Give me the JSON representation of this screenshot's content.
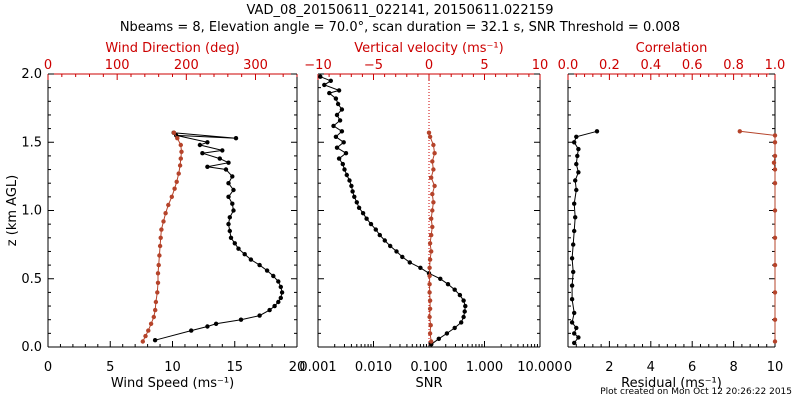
{
  "title_line1": "VAD_08_20150611_022141, 20150611.022159",
  "title_line2": "Nbeams = 8, Elevation angle = 70.0°, scan duration = 32.1 s, SNR Threshold = 0.008",
  "footer": "Plot created on Mon Oct 12 20:26:22 2015",
  "colors": {
    "black": "#000000",
    "red": "#b5432a",
    "axis_red": "#cc0000"
  },
  "chart_data": [
    {
      "type": "line",
      "ylabel": "z (km AGL)",
      "ylim": [
        0,
        2
      ],
      "yticks": [
        "0.0",
        "0.5",
        "1.0",
        "1.5",
        "2.0"
      ],
      "xlabel": "Wind Speed (ms⁻¹)",
      "xlim": [
        0,
        20
      ],
      "xticks": [
        "0",
        "5",
        "10",
        "15",
        "20"
      ],
      "top_label": "Wind Direction (deg)",
      "top_xlim": [
        0,
        360
      ],
      "top_xticks": [
        "0",
        "100",
        "200",
        "300"
      ],
      "series": [
        {
          "axis": "bottom",
          "color": "#000000",
          "points": [
            [
              8.6,
              0.05
            ],
            [
              11.5,
              0.12
            ],
            [
              12.8,
              0.15
            ],
            [
              13.5,
              0.17
            ],
            [
              15.5,
              0.2
            ],
            [
              17.0,
              0.23
            ],
            [
              17.8,
              0.27
            ],
            [
              18.2,
              0.3
            ],
            [
              18.5,
              0.33
            ],
            [
              18.7,
              0.36
            ],
            [
              18.8,
              0.4
            ],
            [
              18.7,
              0.44
            ],
            [
              18.5,
              0.48
            ],
            [
              18.1,
              0.52
            ],
            [
              17.6,
              0.56
            ],
            [
              17.0,
              0.6
            ],
            [
              16.3,
              0.64
            ],
            [
              15.8,
              0.68
            ],
            [
              15.3,
              0.72
            ],
            [
              15.0,
              0.76
            ],
            [
              14.7,
              0.8
            ],
            [
              14.6,
              0.85
            ],
            [
              14.5,
              0.9
            ],
            [
              14.6,
              0.95
            ],
            [
              14.9,
              1.0
            ],
            [
              14.8,
              1.05
            ],
            [
              14.5,
              1.1
            ],
            [
              14.9,
              1.15
            ],
            [
              14.5,
              1.2
            ],
            [
              14.8,
              1.25
            ],
            [
              14.3,
              1.3
            ],
            [
              12.8,
              1.32
            ],
            [
              14.5,
              1.35
            ],
            [
              13.8,
              1.38
            ],
            [
              12.4,
              1.42
            ],
            [
              14.0,
              1.44
            ],
            [
              12.2,
              1.48
            ],
            [
              12.8,
              1.5
            ],
            [
              10.3,
              1.55
            ],
            [
              15.1,
              1.53
            ],
            [
              10.1,
              1.57
            ]
          ]
        },
        {
          "axis": "top",
          "color": "#b5432a",
          "points": [
            [
              137,
              0.04
            ],
            [
              141,
              0.08
            ],
            [
              145,
              0.12
            ],
            [
              149,
              0.17
            ],
            [
              153,
              0.22
            ],
            [
              155,
              0.27
            ],
            [
              156,
              0.33
            ],
            [
              158,
              0.4
            ],
            [
              159,
              0.47
            ],
            [
              159,
              0.54
            ],
            [
              160,
              0.6
            ],
            [
              161,
              0.67
            ],
            [
              162,
              0.74
            ],
            [
              163,
              0.8
            ],
            [
              164,
              0.86
            ],
            [
              167,
              0.92
            ],
            [
              170,
              0.98
            ],
            [
              174,
              1.04
            ],
            [
              179,
              1.1
            ],
            [
              183,
              1.16
            ],
            [
              186,
              1.21
            ],
            [
              189,
              1.27
            ],
            [
              191,
              1.33
            ],
            [
              192,
              1.38
            ],
            [
              193,
              1.43
            ],
            [
              192,
              1.48
            ],
            [
              187,
              1.53
            ],
            [
              182,
              1.57
            ]
          ]
        }
      ]
    },
    {
      "type": "line",
      "xlabel": "SNR",
      "xscale": "log",
      "xlim": [
        0.001,
        10
      ],
      "xticks": [
        "0.001",
        "0.010",
        "0.100",
        "1.000",
        "10.000"
      ],
      "top_label": "Vertical velocity (ms⁻¹)",
      "top_xlim": [
        -10,
        10
      ],
      "top_xticks": [
        "−10",
        "−5",
        "0",
        "5",
        "10"
      ],
      "reference_line": {
        "axis": "top",
        "value": 0,
        "style": "dotted"
      },
      "series": [
        {
          "axis": "bottom",
          "color": "#000000",
          "points": [
            [
              0.11,
              0.02
            ],
            [
              0.15,
              0.06
            ],
            [
              0.21,
              0.1
            ],
            [
              0.29,
              0.14
            ],
            [
              0.38,
              0.18
            ],
            [
              0.42,
              0.22
            ],
            [
              0.44,
              0.26
            ],
            [
              0.45,
              0.3
            ],
            [
              0.42,
              0.34
            ],
            [
              0.36,
              0.38
            ],
            [
              0.29,
              0.42
            ],
            [
              0.22,
              0.46
            ],
            [
              0.16,
              0.5
            ],
            [
              0.1,
              0.54
            ],
            [
              0.07,
              0.58
            ],
            [
              0.045,
              0.62
            ],
            [
              0.033,
              0.66
            ],
            [
              0.026,
              0.7
            ],
            [
              0.02,
              0.74
            ],
            [
              0.016,
              0.78
            ],
            [
              0.013,
              0.82
            ],
            [
              0.011,
              0.86
            ],
            [
              0.009,
              0.9
            ],
            [
              0.0075,
              0.94
            ],
            [
              0.0065,
              0.98
            ],
            [
              0.0055,
              1.02
            ],
            [
              0.005,
              1.06
            ],
            [
              0.0045,
              1.1
            ],
            [
              0.0042,
              1.14
            ],
            [
              0.004,
              1.18
            ],
            [
              0.0037,
              1.22
            ],
            [
              0.0033,
              1.26
            ],
            [
              0.003,
              1.3
            ],
            [
              0.0028,
              1.34
            ],
            [
              0.0024,
              1.38
            ],
            [
              0.0032,
              1.42
            ],
            [
              0.0022,
              1.46
            ],
            [
              0.0029,
              1.5
            ],
            [
              0.0021,
              1.54
            ],
            [
              0.0027,
              1.58
            ],
            [
              0.0019,
              1.62
            ],
            [
              0.0025,
              1.66
            ],
            [
              0.0022,
              1.7
            ],
            [
              0.0027,
              1.74
            ],
            [
              0.0023,
              1.78
            ],
            [
              0.0021,
              1.82
            ],
            [
              0.0016,
              1.86
            ],
            [
              0.0024,
              1.88
            ],
            [
              0.0013,
              1.92
            ],
            [
              0.0017,
              1.95
            ],
            [
              0.0011,
              1.98
            ]
          ]
        },
        {
          "axis": "top",
          "color": "#b5432a",
          "points": [
            [
              0.2,
              0.04
            ],
            [
              0.1,
              0.1
            ],
            [
              0.15,
              0.16
            ],
            [
              0.05,
              0.22
            ],
            [
              0.1,
              0.28
            ],
            [
              0.1,
              0.34
            ],
            [
              0.05,
              0.4
            ],
            [
              0.05,
              0.46
            ],
            [
              0.05,
              0.52
            ],
            [
              0.05,
              0.58
            ],
            [
              0.1,
              0.64
            ],
            [
              0.2,
              0.7
            ],
            [
              0.1,
              0.76
            ],
            [
              0.2,
              0.82
            ],
            [
              0.3,
              0.88
            ],
            [
              0.2,
              0.94
            ],
            [
              0.3,
              1.0
            ],
            [
              0.4,
              1.06
            ],
            [
              0.3,
              1.12
            ],
            [
              0.5,
              1.18
            ],
            [
              0.2,
              1.24
            ],
            [
              0.4,
              1.3
            ],
            [
              0.3,
              1.36
            ],
            [
              0.5,
              1.42
            ],
            [
              0.4,
              1.48
            ],
            [
              0.1,
              1.54
            ],
            [
              0.0,
              1.57
            ]
          ]
        }
      ]
    },
    {
      "type": "line",
      "xlabel": "Residual (ms⁻¹)",
      "xlim": [
        0,
        10
      ],
      "xticks": [
        "0",
        "2",
        "4",
        "6",
        "8",
        "10"
      ],
      "top_label": "Correlation",
      "top_xlim": [
        0,
        1
      ],
      "top_xticks": [
        "0.0",
        "0.2",
        "0.4",
        "0.6",
        "0.8",
        "1.0"
      ],
      "series": [
        {
          "axis": "bottom",
          "color": "#000000",
          "points": [
            [
              0.3,
              0.03
            ],
            [
              0.5,
              0.07
            ],
            [
              0.3,
              0.1
            ],
            [
              0.4,
              0.14
            ],
            [
              0.2,
              0.18
            ],
            [
              0.3,
              0.25
            ],
            [
              0.2,
              0.35
            ],
            [
              0.2,
              0.45
            ],
            [
              0.25,
              0.55
            ],
            [
              0.2,
              0.65
            ],
            [
              0.25,
              0.75
            ],
            [
              0.3,
              0.85
            ],
            [
              0.35,
              0.95
            ],
            [
              0.3,
              1.05
            ],
            [
              0.4,
              1.15
            ],
            [
              0.35,
              1.22
            ],
            [
              0.5,
              1.28
            ],
            [
              0.4,
              1.34
            ],
            [
              0.45,
              1.4
            ],
            [
              0.5,
              1.45
            ],
            [
              0.3,
              1.5
            ],
            [
              0.4,
              1.54
            ],
            [
              1.4,
              1.58
            ]
          ]
        },
        {
          "axis": "top",
          "color": "#b5432a",
          "points": [
            [
              1.0,
              0.04
            ],
            [
              1.0,
              0.2
            ],
            [
              1.0,
              0.4
            ],
            [
              1.0,
              0.6
            ],
            [
              1.0,
              0.8
            ],
            [
              1.0,
              1.0
            ],
            [
              1.0,
              1.2
            ],
            [
              1.0,
              1.3
            ],
            [
              0.995,
              1.35
            ],
            [
              1.0,
              1.4
            ],
            [
              1.0,
              1.5
            ],
            [
              1.0,
              1.55
            ],
            [
              0.83,
              1.58
            ]
          ]
        }
      ]
    }
  ]
}
